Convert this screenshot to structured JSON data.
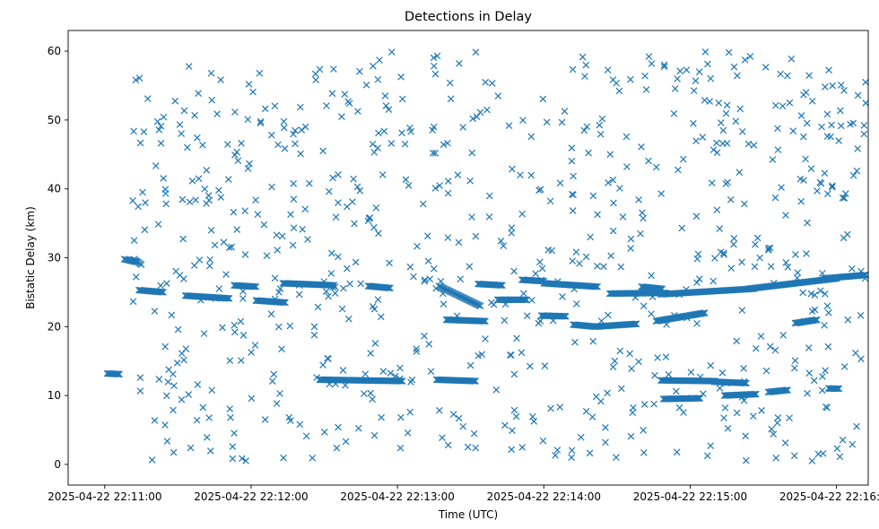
{
  "chart_data": {
    "type": "scatter",
    "title": "Detections in Delay",
    "xlabel": "Time (UTC)",
    "ylabel": "Bistatic Delay (km)",
    "x_unit": "seconds after 2025-04-22 22:11:00",
    "xlim": [
      -15,
      313
    ],
    "ylim": [
      -3,
      63
    ],
    "x_ticks": [
      {
        "value": 0,
        "label": "2025-04-22 22:11:00"
      },
      {
        "value": 60,
        "label": "2025-04-22 22:12:00"
      },
      {
        "value": 120,
        "label": "2025-04-22 22:13:00"
      },
      {
        "value": 180,
        "label": "2025-04-22 22:14:00"
      },
      {
        "value": 240,
        "label": "2025-04-22 22:15:00"
      },
      {
        "value": 300,
        "label": "2025-04-22 22:16:00"
      }
    ],
    "y_ticks": [
      0,
      10,
      20,
      30,
      40,
      50,
      60
    ],
    "marker": "x",
    "color": "#1f77b4",
    "grid": false,
    "legend": "none",
    "tracks": [
      {
        "t_start": 12,
        "t_end": 15,
        "y_start": 29.8,
        "y_end": 29.0
      },
      {
        "t_start": 14,
        "t_end": 24,
        "y_start": 25.3,
        "y_end": 25.0
      },
      {
        "t_start": 33,
        "t_end": 51,
        "y_start": 24.5,
        "y_end": 24.1
      },
      {
        "t_start": 53,
        "t_end": 62,
        "y_start": 26.0,
        "y_end": 25.8
      },
      {
        "t_start": 62,
        "t_end": 74,
        "y_start": 23.8,
        "y_end": 23.5
      },
      {
        "t_start": 73,
        "t_end": 94,
        "y_start": 26.3,
        "y_end": 26.0
      },
      {
        "t_start": 8,
        "t_end": 13,
        "y_start": 29.8,
        "y_end": 29.4
      },
      {
        "t_start": 88,
        "t_end": 122,
        "y_start": 12.3,
        "y_end": 12.1
      },
      {
        "t_start": 108,
        "t_end": 117,
        "y_start": 25.9,
        "y_end": 25.6
      },
      {
        "t_start": 136,
        "t_end": 152,
        "y_start": 12.3,
        "y_end": 12.1
      },
      {
        "t_start": 137,
        "t_end": 154,
        "y_start": 25.9,
        "y_end": 23.0
      },
      {
        "t_start": 140,
        "t_end": 156,
        "y_start": 21.0,
        "y_end": 20.8
      },
      {
        "t_start": 153,
        "t_end": 163,
        "y_start": 26.2,
        "y_end": 26.0
      },
      {
        "t_start": 161,
        "t_end": 173,
        "y_start": 23.9,
        "y_end": 23.9
      },
      {
        "t_start": 171,
        "t_end": 180,
        "y_start": 26.8,
        "y_end": 26.6
      },
      {
        "t_start": 179,
        "t_end": 189,
        "y_start": 21.6,
        "y_end": 21.5
      },
      {
        "t_start": 180,
        "t_end": 202,
        "y_start": 26.3,
        "y_end": 25.8
      },
      {
        "t_start": 192,
        "t_end": 201,
        "y_start": 20.3,
        "y_end": 20.0
      },
      {
        "t_start": 201,
        "t_end": 218,
        "y_start": 20.0,
        "y_end": 20.4
      },
      {
        "t_start": 207,
        "t_end": 230,
        "y_start": 24.8,
        "y_end": 24.9
      },
      {
        "t_start": 220,
        "t_end": 228,
        "y_start": 25.8,
        "y_end": 25.5
      },
      {
        "t_start": 226,
        "t_end": 246,
        "y_start": 20.8,
        "y_end": 22.0
      },
      {
        "t_start": 228,
        "t_end": 266,
        "y_start": 24.7,
        "y_end": 25.5
      },
      {
        "t_start": 228,
        "t_end": 250,
        "y_start": 12.2,
        "y_end": 12.1
      },
      {
        "t_start": 229,
        "t_end": 244,
        "y_start": 9.5,
        "y_end": 9.6
      },
      {
        "t_start": 250,
        "t_end": 263,
        "y_start": 12.0,
        "y_end": 11.8
      },
      {
        "t_start": 254,
        "t_end": 267,
        "y_start": 10.0,
        "y_end": 10.2
      },
      {
        "t_start": 264,
        "t_end": 300,
        "y_start": 25.5,
        "y_end": 27.0
      },
      {
        "t_start": 272,
        "t_end": 280,
        "y_start": 10.5,
        "y_end": 10.8
      },
      {
        "t_start": 295,
        "t_end": 312,
        "y_start": 27.0,
        "y_end": 27.5
      },
      {
        "t_start": 283,
        "t_end": 292,
        "y_start": 20.5,
        "y_end": 21.0
      },
      {
        "t_start": 1,
        "t_end": 6,
        "y_start": 13.2,
        "y_end": 13.1
      },
      {
        "t_start": 297,
        "t_end": 301,
        "y_start": 11.0,
        "y_end": 11.0
      }
    ],
    "noise": {
      "count": 760,
      "x_range": [
        11,
        312
      ],
      "y_range": [
        0.5,
        60
      ],
      "seed": 20250422
    }
  }
}
